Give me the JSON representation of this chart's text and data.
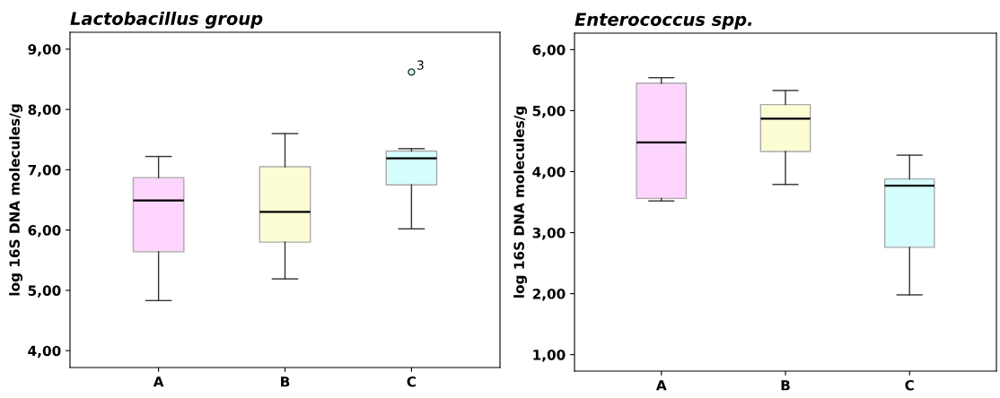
{
  "chart_data": [
    {
      "type": "box",
      "title": "Lactobacillus group",
      "ylabel": "log 16S DNA molecules/g",
      "categories": [
        "A",
        "B",
        "C"
      ],
      "colors": [
        "#fdd5fd",
        "#fdfdd5",
        "#d5fdfd"
      ],
      "boxes": [
        {
          "low": 4.83,
          "q1": 5.64,
          "median": 6.49,
          "q3": 6.87,
          "high": 7.22
        },
        {
          "low": 5.19,
          "q1": 5.8,
          "median": 6.3,
          "q3": 7.05,
          "high": 7.6
        },
        {
          "low": 6.02,
          "q1": 6.75,
          "median": 7.19,
          "q3": 7.31,
          "high": 7.35,
          "outliers": [
            8.62
          ]
        }
      ],
      "annotations": [
        "3"
      ],
      "ylim": [
        3.72,
        9.28
      ],
      "yticks": [
        {
          "value": 4,
          "label": "4,00"
        },
        {
          "value": 5,
          "label": "5,00"
        },
        {
          "value": 6,
          "label": "6,00"
        },
        {
          "value": 7,
          "label": "7,00"
        },
        {
          "value": 8,
          "label": "8,00"
        },
        {
          "value": 9,
          "label": "9,00"
        }
      ],
      "grid": false
    },
    {
      "type": "box",
      "title": "Enterococcus spp.",
      "ylabel": "log 16S DNA molecules/g",
      "categories": [
        "A",
        "B",
        "C"
      ],
      "colors": [
        "#fdd5fd",
        "#fdfdd5",
        "#d5fdfd"
      ],
      "boxes": [
        {
          "low": 3.52,
          "q1": 3.56,
          "median": 4.48,
          "q3": 5.45,
          "high": 5.54
        },
        {
          "low": 3.79,
          "q1": 4.33,
          "median": 4.87,
          "q3": 5.1,
          "high": 5.33
        },
        {
          "low": 1.98,
          "q1": 2.76,
          "median": 3.77,
          "q3": 3.88,
          "high": 4.27
        }
      ],
      "ylim": [
        0.73,
        6.27
      ],
      "yticks": [
        {
          "value": 1,
          "label": "1,00"
        },
        {
          "value": 2,
          "label": "2,00"
        },
        {
          "value": 3,
          "label": "3,00"
        },
        {
          "value": 4,
          "label": "4,00"
        },
        {
          "value": 5,
          "label": "5,00"
        },
        {
          "value": 6,
          "label": "6,00"
        }
      ],
      "grid": false
    }
  ]
}
